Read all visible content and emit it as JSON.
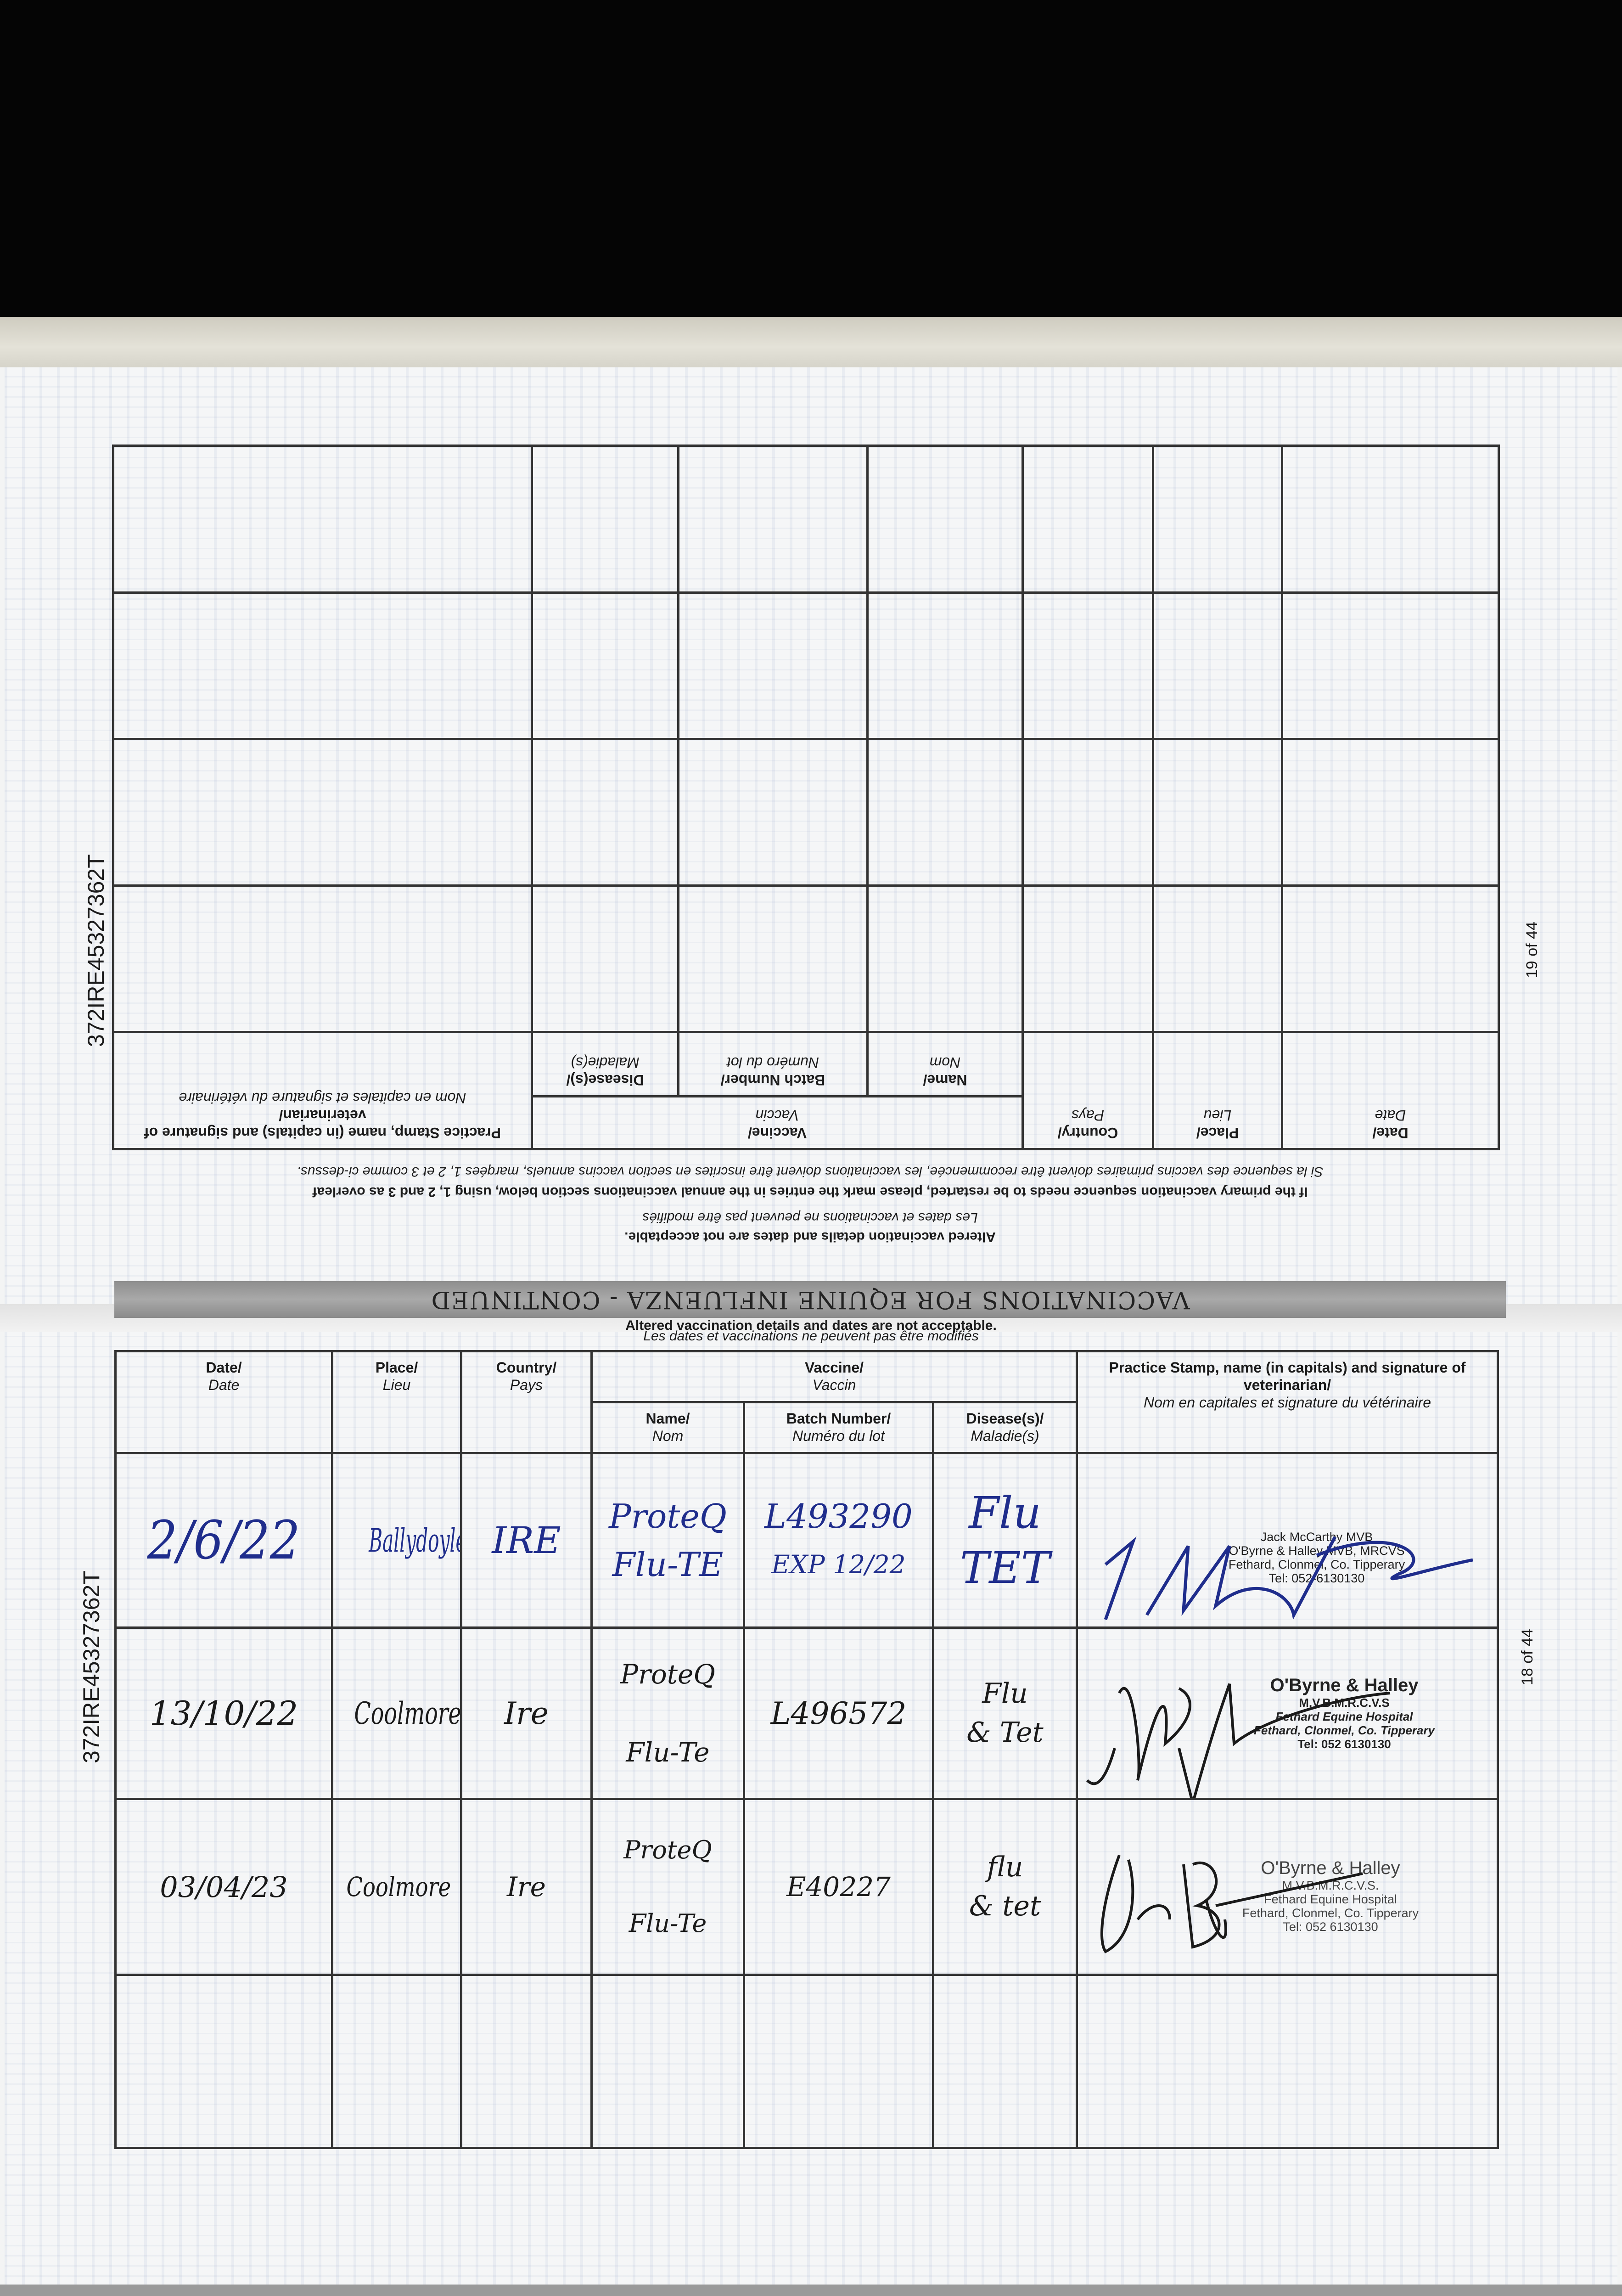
{
  "document": {
    "title": "VACCINATIONS FOR EQUINE INFLUENZA - CONTINUED",
    "passport_id": "372IRE45327362T",
    "notice_en": "Altered vaccination details and dates are not acceptable.",
    "notice_fr": "Les dates et vaccinations ne peuvent pas être modifiés",
    "instruction_en": "If the primary vaccination sequence needs to be restarted, please mark the entries in the annual vaccinations section below, using 1, 2 and 3 as overleaf",
    "instruction_fr": "Si la sequence des vaccins primaires doivent être recommencée, les vaccinations doivent être inscrites en section vaccins annuels, marqées 1, 2 et 3 comme ci-dessus."
  },
  "headers": {
    "date": "Date/",
    "date_fr": "Date",
    "place": "Place/",
    "place_fr": "Lieu",
    "country": "Country/",
    "country_fr": "Pays",
    "vaccine": "Vaccine/",
    "vaccine_fr": "Vaccin",
    "name": "Name/",
    "name_fr": "Nom",
    "batch": "Batch Number/",
    "batch_fr": "Numéro du lot",
    "disease": "Disease(s)/",
    "disease_fr": "Maladie(s)",
    "stamp": "Practice Stamp, name (in capitals) and signature of veterinarian/",
    "stamp_fr": "Nom en capitales et signature du vétérinaire"
  },
  "page_upper": {
    "page_number": "19 of 44"
  },
  "page_lower": {
    "page_number": "18 of 44",
    "rows": [
      {
        "date": "2/6/22",
        "place": "Ballydoyle",
        "country": "IRE",
        "name1": "ProteQ",
        "name2": "Flu-TE",
        "batch1": "L493290",
        "batch2": "EXP 12/22",
        "disease1": "Flu",
        "disease2": "TET",
        "ink": "#1f2d8c",
        "stamp": [
          "Jack McCarthy MVB",
          "O'Byrne & Halley MVB, MRCVS",
          "Fethard, Clonmel, Co. Tipperary",
          "Tel: 052-6130130"
        ]
      },
      {
        "date": "13/10/22",
        "place": "Coolmore",
        "country": "Ire",
        "name1": "ProteQ",
        "name2": "Flu-Te",
        "batch1": "L496572",
        "batch2": "",
        "disease1": "Flu",
        "disease2": "& Tet",
        "ink": "#1a1a1a",
        "stamp": [
          "O'Byrne & Halley",
          "M.V.B.M.R.C.V.S",
          "Fethard Equine Hospital",
          "Fethard, Clonmel, Co. Tipperary",
          "Tel: 052 6130130"
        ]
      },
      {
        "date": "03/04/23",
        "place": "Coolmore",
        "country": "Ire",
        "name1": "ProteQ",
        "name2": "Flu-Te",
        "batch1": "E40227",
        "batch2": "",
        "disease1": "flu",
        "disease2": "& tet",
        "ink": "#1a1a1a",
        "stamp": [
          "O'Byrne & Halley",
          "M.V.B.M.R.C.V.S.",
          "Fethard Equine Hospital",
          "Fethard, Clonmel, Co. Tipperary",
          "Tel: 052 6130130"
        ]
      }
    ]
  }
}
